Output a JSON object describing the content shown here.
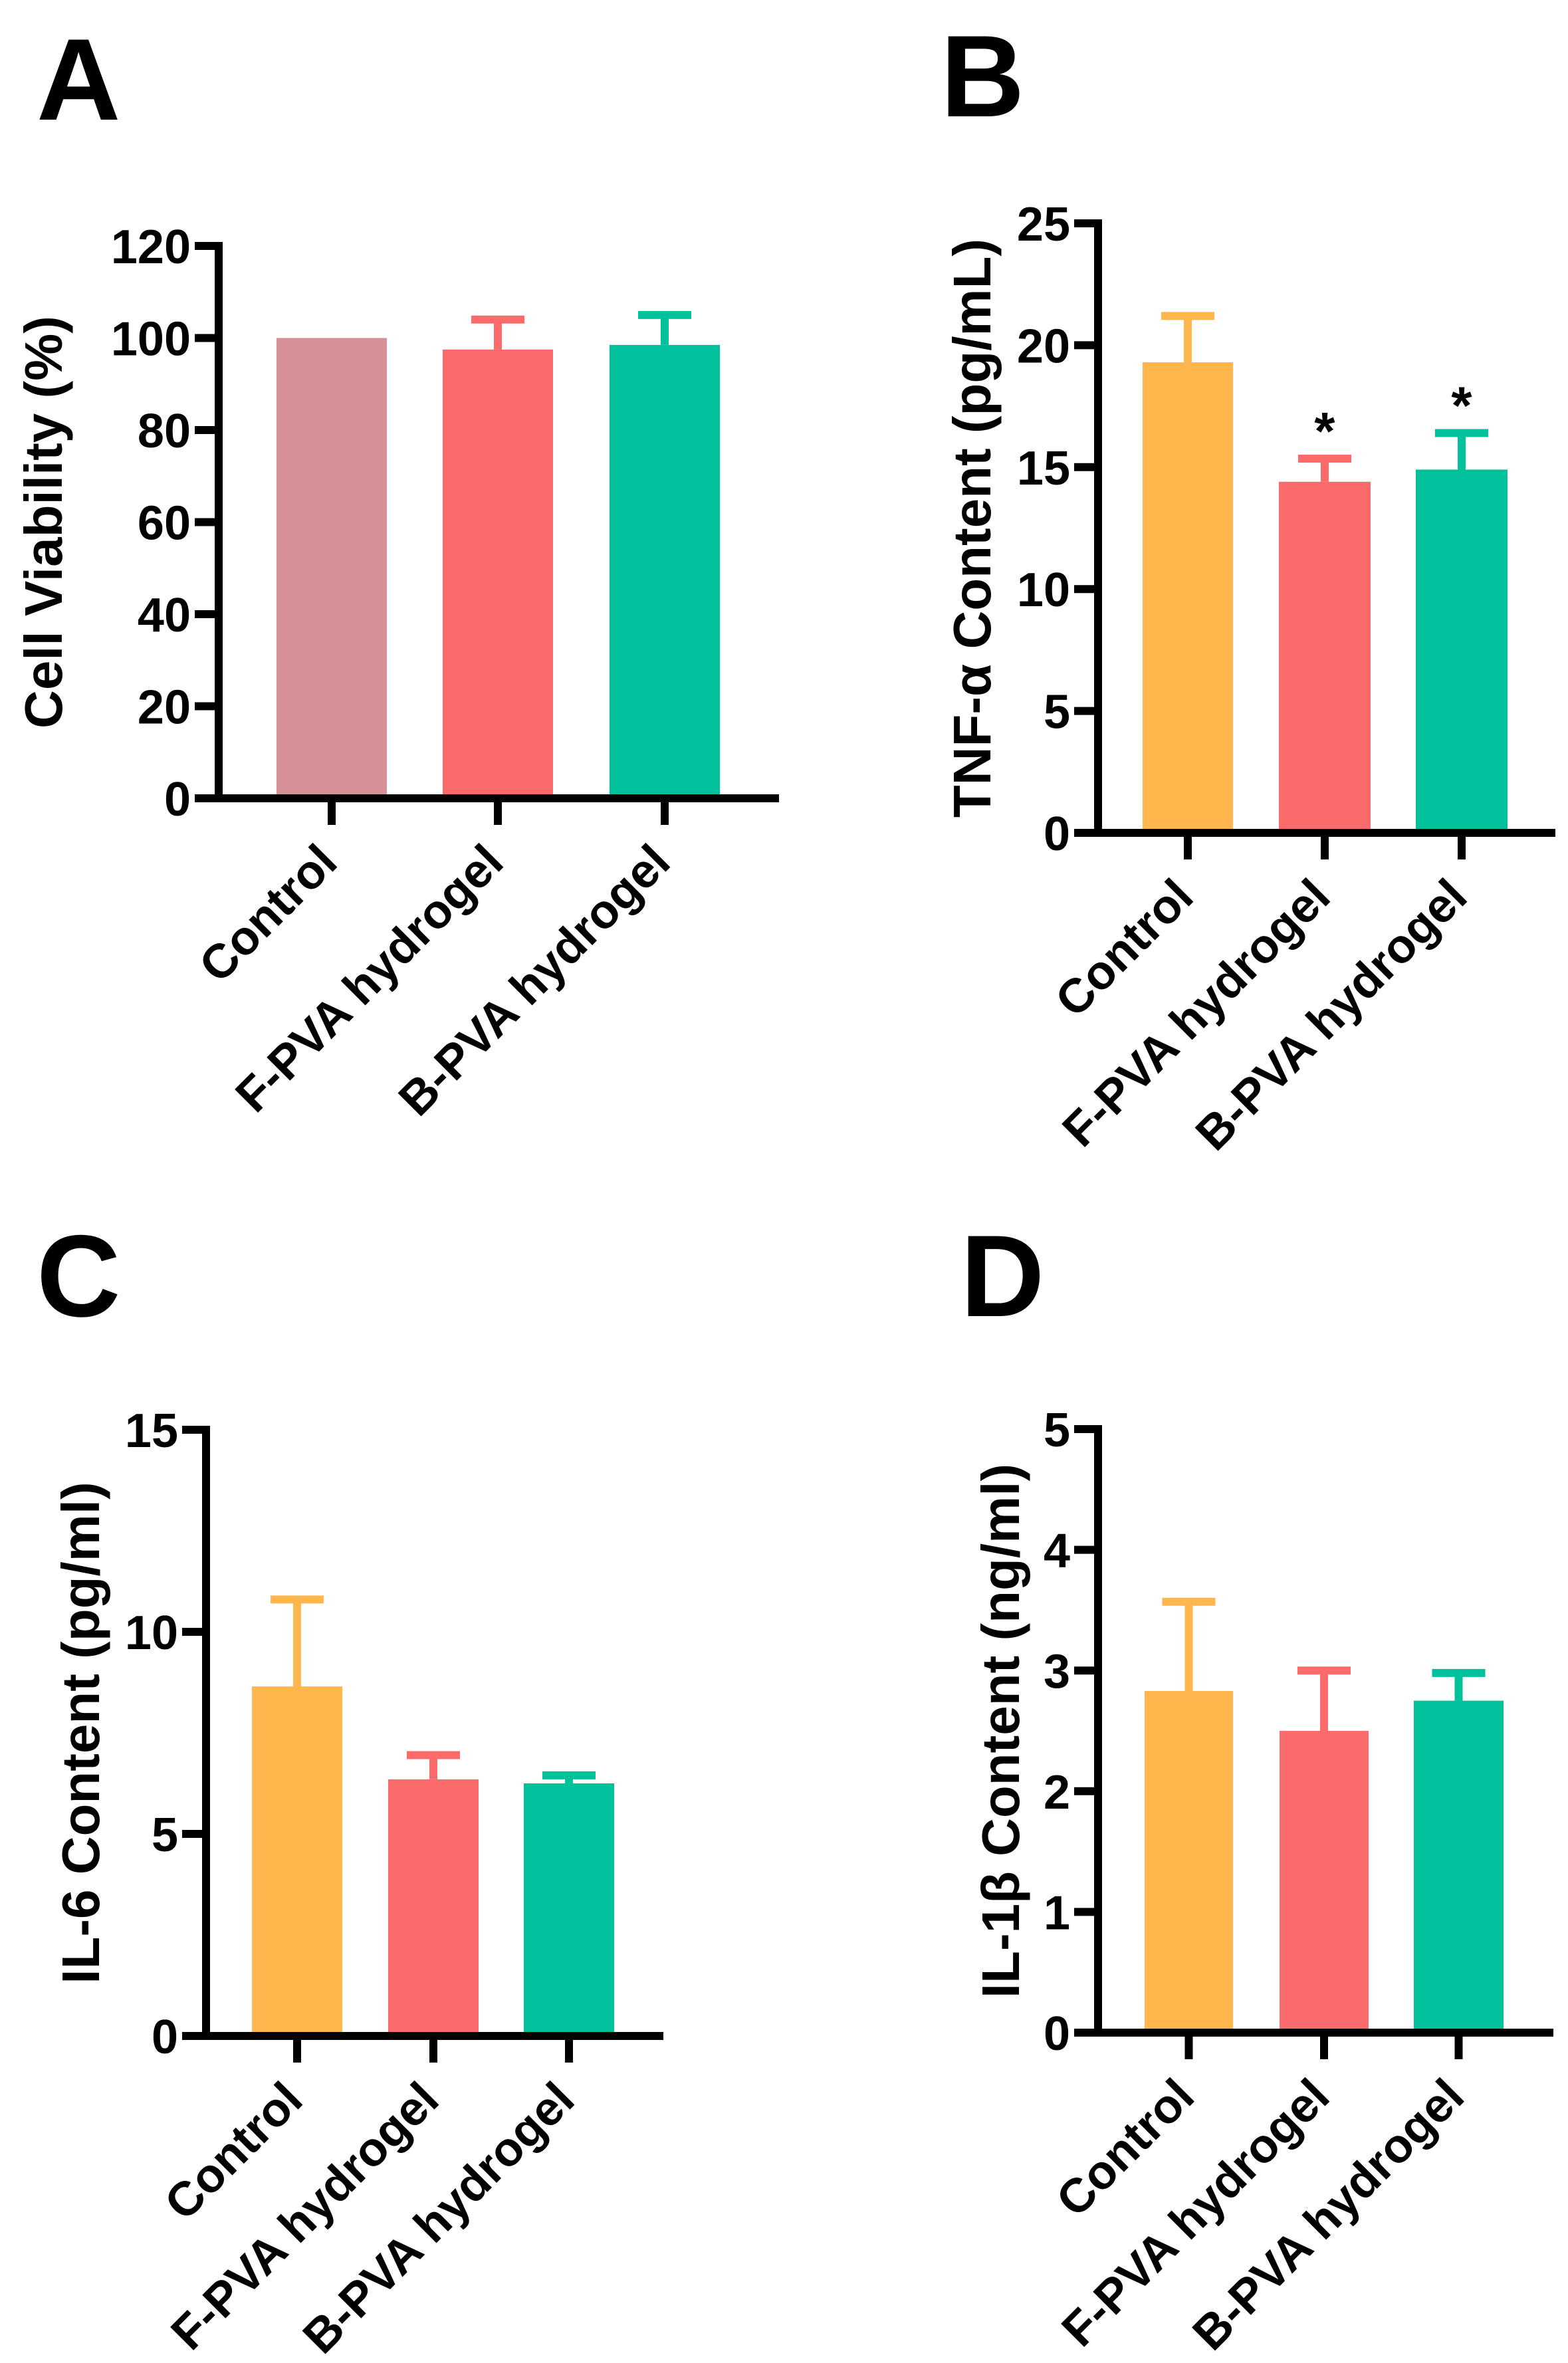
{
  "chart_data": [
    {
      "panel": "A",
      "type": "bar",
      "ylabel": "Cell Viability (%)",
      "ylim": [
        0,
        120
      ],
      "yticks": [
        0,
        20,
        40,
        60,
        80,
        100,
        120
      ],
      "categories": [
        "Control",
        "F-PVA hydrogel",
        "B-PVA hydrogel"
      ],
      "values": [
        100,
        97.5,
        98.5
      ],
      "errors": [
        0,
        6.5,
        6.5
      ],
      "colors": [
        "#D69197",
        "#FC6B6B",
        "#00C19A"
      ],
      "annotations": [
        "",
        "",
        ""
      ]
    },
    {
      "panel": "B",
      "type": "bar",
      "ylabel": "TNF-α Content (pg/mL)",
      "ylim": [
        0,
        25
      ],
      "yticks": [
        0,
        5,
        10,
        15,
        20,
        25
      ],
      "categories": [
        "Control",
        "F-PVA hydrogel",
        "B-PVA hydrogel"
      ],
      "values": [
        19.3,
        14.4,
        14.9
      ],
      "errors": [
        1.9,
        0.95,
        1.5
      ],
      "colors": [
        "#FFB64D",
        "#FC6B6B",
        "#00C19A"
      ],
      "annotations": [
        "",
        "*",
        "*"
      ]
    },
    {
      "panel": "C",
      "type": "bar",
      "ylabel": "IL-6 Content (pg/ml)",
      "ylim": [
        0,
        15
      ],
      "yticks": [
        0,
        5,
        10,
        15
      ],
      "categories": [
        "Control",
        "F-PVA hydrogel",
        "B-PVA hydrogel"
      ],
      "values": [
        8.65,
        6.35,
        6.25
      ],
      "errors": [
        2.15,
        0.6,
        0.2
      ],
      "colors": [
        "#FFB64D",
        "#FC6B6B",
        "#00C19A"
      ],
      "annotations": [
        "",
        "",
        ""
      ]
    },
    {
      "panel": "D",
      "type": "bar",
      "ylabel": "IL-1β Content (ng/ml)",
      "ylim": [
        0,
        5
      ],
      "yticks": [
        0,
        1,
        2,
        3,
        4,
        5
      ],
      "categories": [
        "Control",
        "F-PVA hydrogel",
        "B-PVA hydrogel"
      ],
      "values": [
        2.83,
        2.5,
        2.75
      ],
      "errors": [
        0.74,
        0.5,
        0.23
      ],
      "colors": [
        "#FFB64D",
        "#FC6B6B",
        "#00C19A"
      ],
      "annotations": [
        "",
        "",
        ""
      ]
    }
  ]
}
